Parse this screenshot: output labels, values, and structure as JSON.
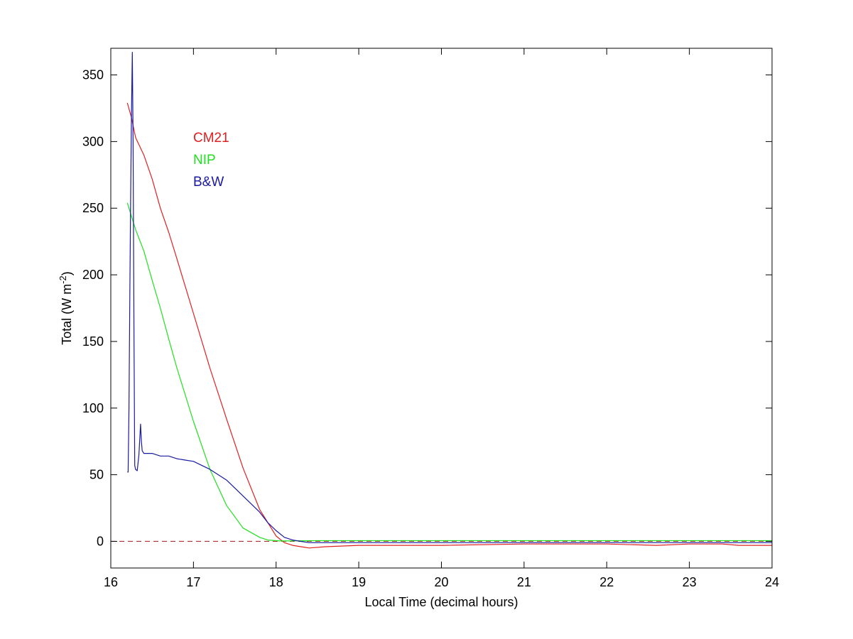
{
  "chart_data": {
    "type": "line",
    "xlabel": "Local Time (decimal hours)",
    "ylabel": {
      "base": "Total (W m",
      "exponent": "-2",
      "close": ")"
    },
    "xlim": [
      16,
      24
    ],
    "ylim": [
      -20,
      370
    ],
    "xticks": [
      16,
      17,
      18,
      19,
      20,
      21,
      22,
      23,
      24
    ],
    "yticks": [
      0,
      50,
      100,
      150,
      200,
      250,
      300,
      350
    ],
    "grid": false,
    "legend": {
      "placement": "top-left, inside plot"
    },
    "reference_line": {
      "y": 0,
      "style": "dashed",
      "color": "#b03030"
    },
    "series": [
      {
        "name": "CM21",
        "color": "#e02020",
        "x": [
          16.2,
          16.25,
          16.3,
          16.4,
          16.5,
          16.6,
          16.7,
          16.8,
          17.0,
          17.2,
          17.4,
          17.6,
          17.8,
          18.0,
          18.1,
          18.2,
          18.3,
          18.4,
          18.6,
          19.0,
          20.0,
          21.0,
          22.0,
          22.6,
          23.0,
          23.4,
          23.6,
          24.0
        ],
        "values": [
          329,
          318,
          303,
          290,
          272,
          250,
          232,
          212,
          171,
          130,
          92,
          55,
          24,
          4,
          -1,
          -3,
          -4,
          -5,
          -4,
          -3,
          -3,
          -2,
          -2,
          -3,
          -2,
          -2,
          -3,
          -3
        ]
      },
      {
        "name": "NIP",
        "color": "#20e020",
        "x": [
          16.2,
          16.3,
          16.4,
          16.5,
          16.6,
          16.7,
          16.8,
          17.0,
          17.2,
          17.4,
          17.6,
          17.8,
          17.9,
          18.0,
          18.05,
          18.1,
          18.5,
          19.0,
          20.0,
          21.0,
          22.0,
          23.0,
          24.0
        ],
        "values": [
          254,
          234,
          218,
          196,
          175,
          152,
          130,
          90,
          54,
          27,
          10,
          3,
          1,
          0.5,
          0.3,
          0.3,
          0.5,
          0.5,
          0.5,
          0.5,
          0.5,
          0.5,
          0.5
        ]
      },
      {
        "name": "B&W",
        "color": "#1a1aa0",
        "x": [
          16.2,
          16.21,
          16.22,
          16.23,
          16.24,
          16.25,
          16.26,
          16.27,
          16.28,
          16.29,
          16.3,
          16.32,
          16.34,
          16.36,
          16.37,
          16.38,
          16.39,
          16.4,
          16.5,
          16.6,
          16.7,
          16.8,
          16.9,
          17.0,
          17.2,
          17.4,
          17.6,
          17.8,
          17.9,
          18.0,
          18.1,
          18.2,
          18.3,
          18.4,
          18.5,
          19.0,
          20.0,
          21.0,
          22.0,
          23.0,
          23.5,
          24.0
        ],
        "values": [
          52,
          52,
          100,
          185,
          255,
          320,
          367,
          300,
          160,
          57,
          54,
          53,
          65,
          88,
          75,
          68,
          67,
          66,
          66,
          64,
          64,
          62,
          61,
          60,
          54,
          46,
          34,
          22,
          14,
          8,
          3,
          1,
          0,
          -1,
          -1,
          -1,
          -1,
          -1,
          -1,
          -1,
          -1,
          -1
        ]
      }
    ]
  }
}
